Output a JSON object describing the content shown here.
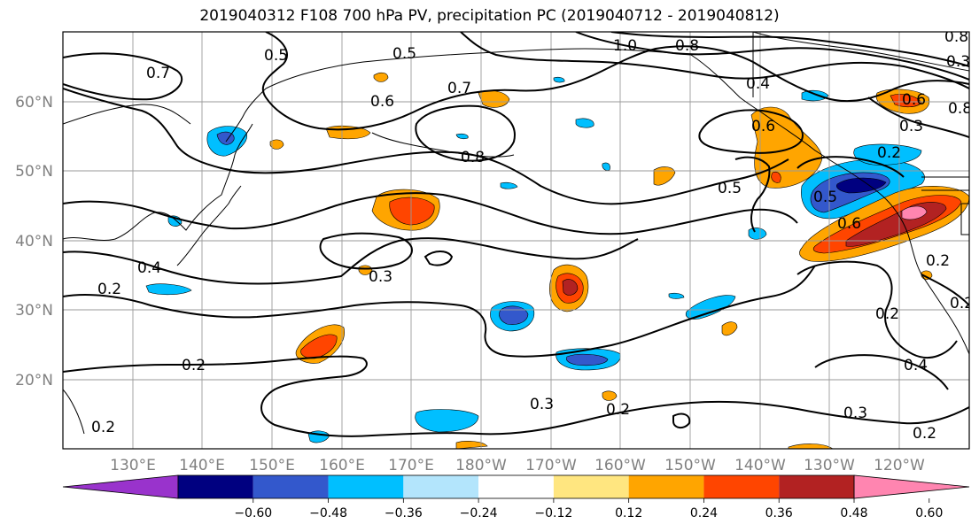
{
  "title": "2019040312 F108 700 hPa PV, precipitation PC (2019040712 - 2019040812)",
  "lat_labels": [
    "60°N",
    "50°N",
    "40°N",
    "30°N",
    "20°N"
  ],
  "lon_labels": [
    "130°E",
    "140°E",
    "150°E",
    "160°E",
    "170°E",
    "180°W",
    "170°W",
    "160°W",
    "150°W",
    "140°W",
    "130°W",
    "120°W"
  ],
  "colorbar": {
    "colors": [
      "#9933cc",
      "#000080",
      "#3358cc",
      "#00bfff",
      "#b3e5fc",
      "#ffffff",
      "#ffe680",
      "#ffa500",
      "#ff4500",
      "#b22222",
      "#ff85b0"
    ],
    "tick_labels": [
      "−0.60",
      "−0.48",
      "−0.36",
      "−0.24",
      "−0.12",
      "0.12",
      "0.24",
      "0.36",
      "0.48",
      "0.60"
    ]
  },
  "contour_labels": [
    "0.7",
    "0.5",
    "0.5",
    "1.0",
    "0.8",
    "0.8",
    "0.4",
    "0.6",
    "0.7",
    "0.6",
    "0.8",
    "0.6",
    "0.3",
    "0.2",
    "0.5",
    "0.5",
    "0.6",
    "0.3",
    "0.2",
    "0.2",
    "0.4",
    "0.2",
    "0.2",
    "0.3",
    "0.2",
    "0.3",
    "0.2",
    "0.2",
    "0.4",
    "0.2",
    "0.3",
    "0.8"
  ]
}
